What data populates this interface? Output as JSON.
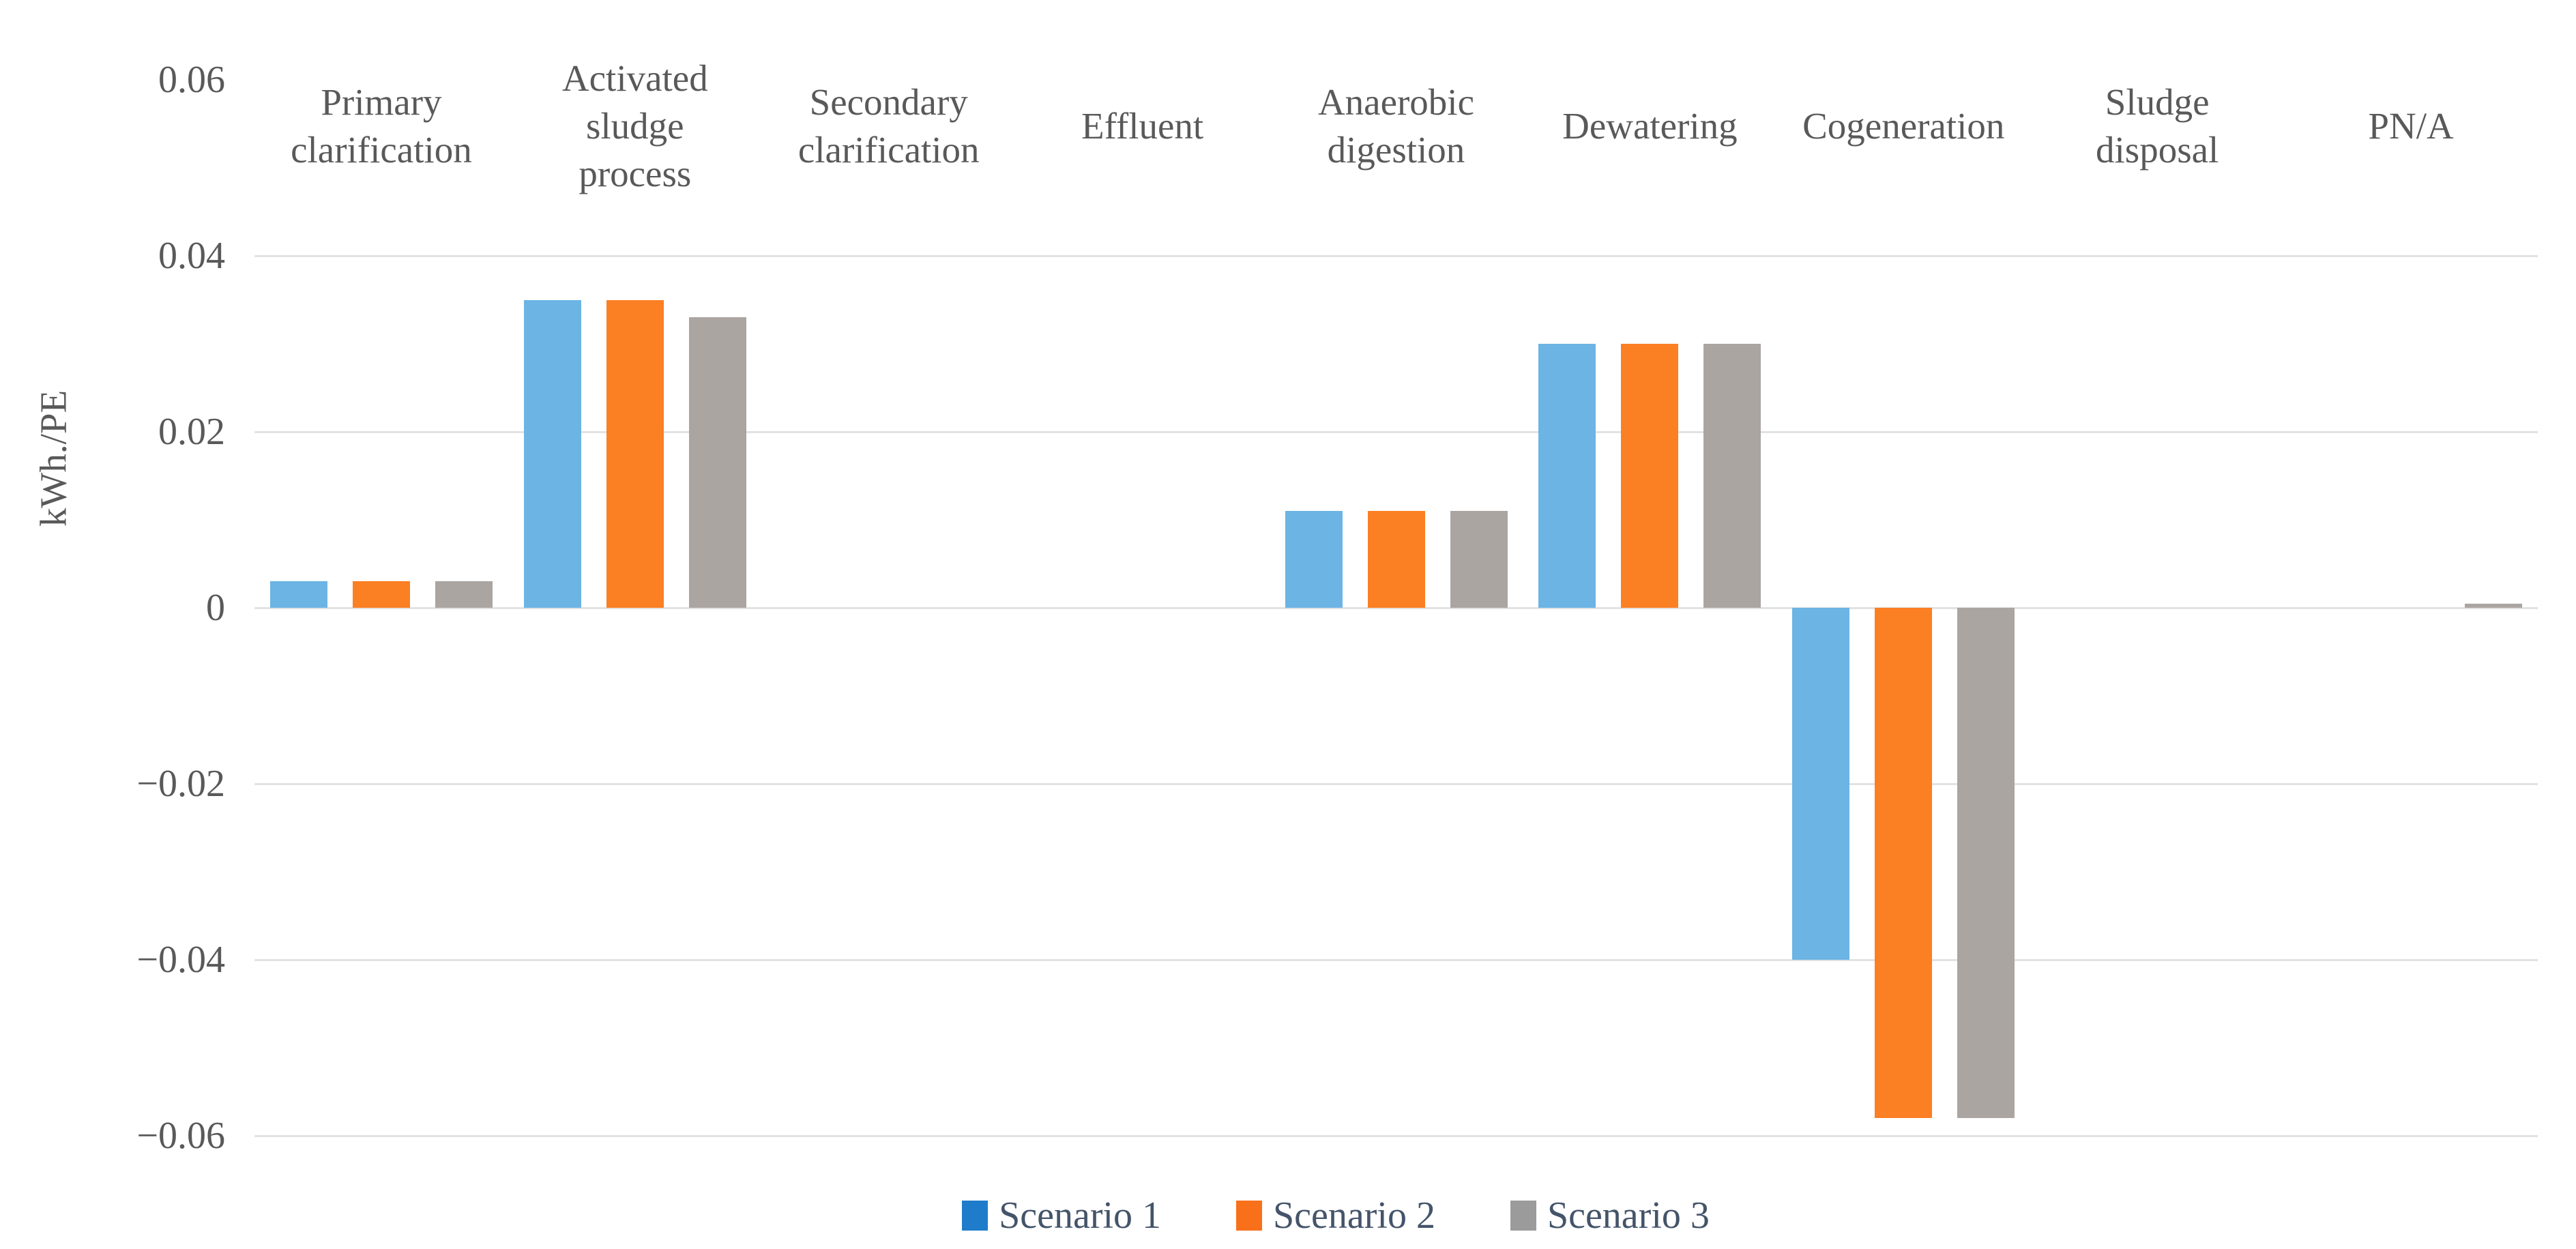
{
  "chart_data": {
    "type": "bar",
    "title": "",
    "xlabel": "",
    "ylabel": "kWh./PE",
    "categories": [
      "Primary\nclarification",
      "Activated\nsludge\nprocess",
      "Secondary\nclarification",
      "Effluent",
      "Anaerobic\ndigestion",
      "Dewatering",
      "Cogeneration",
      "Sludge\ndisposal",
      "PN/A"
    ],
    "series": [
      {
        "name": "Scenario 1",
        "color": "#6CB4E4",
        "legend_color": "#1F7CCB",
        "values": [
          0.003,
          0.035,
          0,
          0,
          0.011,
          0.03,
          -0.04,
          0,
          0
        ]
      },
      {
        "name": "Scenario 2",
        "color": "#FB7F23",
        "legend_color": "#F8701A",
        "values": [
          0.003,
          0.035,
          0,
          0,
          0.011,
          0.03,
          -0.058,
          0,
          0
        ]
      },
      {
        "name": "Scenario 3",
        "color": "#ABA5A2",
        "legend_color": "#9B9B9B",
        "values": [
          0.003,
          0.033,
          0,
          0,
          0.011,
          0.03,
          -0.058,
          0,
          0.0005
        ]
      }
    ],
    "y_ticks": [
      0.06,
      0.04,
      0.02,
      0,
      -0.02,
      -0.04,
      -0.06
    ],
    "y_tick_labels": [
      "0.06",
      "0.04",
      "0.02",
      "0",
      "−0.02",
      "−0.04",
      "−0.06"
    ],
    "gridline_ticks": [
      0.04,
      0.02,
      0,
      -0.02,
      -0.04,
      -0.06
    ],
    "ylim": [
      -0.06,
      0.06
    ],
    "grid": true,
    "legend_position": "bottom",
    "category_labels_position": "top"
  },
  "legend": {
    "items": [
      "Scenario 1",
      "Scenario 2",
      "Scenario 3"
    ]
  },
  "colors": {
    "axis_text": "#595959",
    "legend_text": "#44546A",
    "gridline": "#E2E2E2",
    "background": "#FFFFFF"
  }
}
